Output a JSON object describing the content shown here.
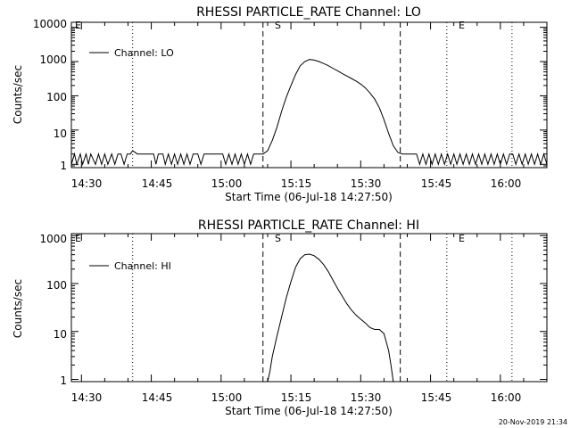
{
  "footer": {
    "timestamp": "20-Nov-2019 21:34"
  },
  "chart_data": [
    {
      "type": "line",
      "title": "RHESSI PARTICLE_RATE Channel: LO",
      "xlabel": "Start Time (06-Jul-18 14:27:50)",
      "ylabel": "Counts/sec",
      "x_tick_labels": [
        "14:30",
        "14:45",
        "15:00",
        "15:15",
        "15:30",
        "15:45",
        "16:00"
      ],
      "y_tick_labels": [
        "1",
        "10",
        "100",
        "1000",
        "10000"
      ],
      "y_scale": "log",
      "xlim": [
        "14:27:50",
        "16:10:00"
      ],
      "ylim": [
        0.8,
        14000
      ],
      "legend": {
        "label": "Channel: LO",
        "position": "top-left"
      },
      "markers": [
        {
          "label": "E",
          "time": "14:27:50",
          "style": "none"
        },
        {
          "label": "",
          "time": "14:41:00",
          "style": "dotted"
        },
        {
          "label": "S",
          "time": "15:09:00",
          "style": "dashed"
        },
        {
          "label": "",
          "time": "15:38:30",
          "style": "dashed"
        },
        {
          "label": "E",
          "time": "15:48:30",
          "style": "dotted"
        },
        {
          "label": "",
          "time": "16:02:30",
          "style": "dotted"
        }
      ],
      "series": [
        {
          "name": "Channel: LO",
          "points": [
            [
              "14:27:50",
              1
            ],
            [
              "14:28:30",
              2
            ],
            [
              "14:29:00",
              1
            ],
            [
              "14:29:45",
              2
            ],
            [
              "14:30:15",
              1
            ],
            [
              "14:31:00",
              2
            ],
            [
              "14:31:30",
              1
            ],
            [
              "14:32:00",
              2
            ],
            [
              "14:33:00",
              1
            ],
            [
              "14:33:40",
              2
            ],
            [
              "14:34:20",
              1
            ],
            [
              "14:35:00",
              2
            ],
            [
              "14:35:40",
              1
            ],
            [
              "14:36:30",
              2
            ],
            [
              "14:37:10",
              1
            ],
            [
              "14:37:50",
              2
            ],
            [
              "14:38:30",
              2
            ],
            [
              "14:39:10",
              1
            ],
            [
              "14:39:50",
              2
            ],
            [
              "14:40:30",
              2
            ],
            [
              "14:41:00",
              2.5
            ],
            [
              "14:42:00",
              2
            ],
            [
              "14:45:30",
              2
            ],
            [
              "14:46:00",
              1
            ],
            [
              "14:46:30",
              2
            ],
            [
              "14:47:30",
              2
            ],
            [
              "14:48:00",
              1
            ],
            [
              "14:48:40",
              2
            ],
            [
              "14:49:20",
              1
            ],
            [
              "14:50:00",
              2
            ],
            [
              "14:50:40",
              1
            ],
            [
              "14:51:20",
              2
            ],
            [
              "14:52:00",
              1
            ],
            [
              "14:52:40",
              2
            ],
            [
              "14:53:20",
              1
            ],
            [
              "14:54:00",
              2
            ],
            [
              "14:55:00",
              2
            ],
            [
              "14:55:40",
              1
            ],
            [
              "14:56:20",
              2
            ],
            [
              "14:57:00",
              2
            ],
            [
              "14:58:00",
              2
            ],
            [
              "15:00:20",
              2
            ],
            [
              "15:01:00",
              1
            ],
            [
              "15:01:40",
              2
            ],
            [
              "15:02:20",
              1
            ],
            [
              "15:03:00",
              2
            ],
            [
              "15:03:40",
              1
            ],
            [
              "15:04:20",
              2
            ],
            [
              "15:05:00",
              1
            ],
            [
              "15:05:40",
              2
            ],
            [
              "15:06:20",
              1
            ],
            [
              "15:07:00",
              2
            ],
            [
              "15:08:00",
              2
            ],
            [
              "15:09:00",
              2
            ],
            [
              "15:10:00",
              2.5
            ],
            [
              "15:11:00",
              5
            ],
            [
              "15:12:00",
              12
            ],
            [
              "15:13:00",
              35
            ],
            [
              "15:14:00",
              90
            ],
            [
              "15:15:00",
              200
            ],
            [
              "15:16:00",
              420
            ],
            [
              "15:17:00",
              750
            ],
            [
              "15:18:00",
              1000
            ],
            [
              "15:19:00",
              1150
            ],
            [
              "15:20:00",
              1100
            ],
            [
              "15:21:00",
              1000
            ],
            [
              "15:22:00",
              880
            ],
            [
              "15:23:00",
              760
            ],
            [
              "15:24:00",
              640
            ],
            [
              "15:25:00",
              540
            ],
            [
              "15:26:00",
              450
            ],
            [
              "15:27:00",
              380
            ],
            [
              "15:28:00",
              320
            ],
            [
              "15:29:00",
              270
            ],
            [
              "15:30:00",
              220
            ],
            [
              "15:31:00",
              170
            ],
            [
              "15:32:00",
              120
            ],
            [
              "15:33:00",
              80
            ],
            [
              "15:34:00",
              45
            ],
            [
              "15:35:00",
              20
            ],
            [
              "15:36:00",
              8
            ],
            [
              "15:37:00",
              3.5
            ],
            [
              "15:38:00",
              2.2
            ],
            [
              "15:39:00",
              2
            ],
            [
              "15:42:00",
              2
            ],
            [
              "15:42:40",
              1
            ],
            [
              "15:43:20",
              2
            ],
            [
              "15:44:00",
              1
            ],
            [
              "15:44:40",
              2
            ],
            [
              "15:45:20",
              1
            ],
            [
              "15:46:00",
              2
            ],
            [
              "15:46:40",
              1
            ],
            [
              "15:47:20",
              2
            ],
            [
              "15:48:00",
              1
            ],
            [
              "15:48:40",
              2
            ],
            [
              "15:49:20",
              1
            ],
            [
              "15:50:00",
              2
            ],
            [
              "15:50:40",
              1
            ],
            [
              "15:51:20",
              2
            ],
            [
              "15:52:00",
              1
            ],
            [
              "15:52:40",
              2
            ],
            [
              "15:53:20",
              1
            ],
            [
              "15:54:00",
              2
            ],
            [
              "15:54:40",
              1
            ],
            [
              "15:55:20",
              2
            ],
            [
              "15:56:00",
              1
            ],
            [
              "15:56:40",
              2
            ],
            [
              "15:57:20",
              1
            ],
            [
              "15:58:00",
              2
            ],
            [
              "15:58:40",
              1
            ],
            [
              "15:59:20",
              2
            ],
            [
              "16:00:00",
              1
            ],
            [
              "16:00:40",
              2
            ],
            [
              "16:01:20",
              1
            ],
            [
              "16:02:00",
              2
            ],
            [
              "16:02:40",
              2
            ],
            [
              "16:03:20",
              1
            ],
            [
              "16:04:00",
              2
            ],
            [
              "16:04:40",
              1
            ],
            [
              "16:05:20",
              2
            ],
            [
              "16:06:00",
              1
            ],
            [
              "16:06:40",
              2
            ],
            [
              "16:07:20",
              1
            ],
            [
              "16:08:00",
              2
            ],
            [
              "16:08:40",
              1
            ],
            [
              "16:09:20",
              2
            ],
            [
              "16:10:00",
              1
            ]
          ]
        }
      ]
    },
    {
      "type": "line",
      "title": "RHESSI PARTICLE_RATE Channel: HI",
      "xlabel": "Start Time (06-Jul-18 14:27:50)",
      "ylabel": "Counts/sec",
      "x_tick_labels": [
        "14:30",
        "14:45",
        "15:00",
        "15:15",
        "15:30",
        "15:45",
        "16:00"
      ],
      "y_tick_labels": [
        "1",
        "10",
        "100",
        "1000"
      ],
      "y_scale": "log",
      "xlim": [
        "14:27:50",
        "16:10:00"
      ],
      "ylim": [
        0.9,
        1100
      ],
      "legend": {
        "label": "Channel: HI",
        "position": "top-left"
      },
      "markers": [
        {
          "label": "E",
          "time": "14:27:50",
          "style": "none"
        },
        {
          "label": "",
          "time": "14:41:00",
          "style": "dotted"
        },
        {
          "label": "S",
          "time": "15:09:00",
          "style": "dashed"
        },
        {
          "label": "",
          "time": "15:38:30",
          "style": "dashed"
        },
        {
          "label": "E",
          "time": "15:48:30",
          "style": "dotted"
        },
        {
          "label": "",
          "time": "16:02:30",
          "style": "dotted"
        }
      ],
      "series": [
        {
          "name": "Channel: HI",
          "points": [
            [
              "15:10:00",
              0.9
            ],
            [
              "15:10:30",
              1.5
            ],
            [
              "15:11:00",
              3
            ],
            [
              "15:12:00",
              8
            ],
            [
              "15:13:00",
              20
            ],
            [
              "15:14:00",
              50
            ],
            [
              "15:15:00",
              110
            ],
            [
              "15:16:00",
              220
            ],
            [
              "15:17:00",
              330
            ],
            [
              "15:18:00",
              400
            ],
            [
              "15:19:00",
              410
            ],
            [
              "15:20:00",
              380
            ],
            [
              "15:21:00",
              320
            ],
            [
              "15:22:00",
              250
            ],
            [
              "15:23:00",
              180
            ],
            [
              "15:24:00",
              120
            ],
            [
              "15:25:00",
              80
            ],
            [
              "15:26:00",
              55
            ],
            [
              "15:27:00",
              38
            ],
            [
              "15:28:00",
              28
            ],
            [
              "15:29:00",
              22
            ],
            [
              "15:30:00",
              18
            ],
            [
              "15:31:00",
              15
            ],
            [
              "15:32:00",
              12
            ],
            [
              "15:33:00",
              11
            ],
            [
              "15:34:00",
              11
            ],
            [
              "15:35:00",
              9
            ],
            [
              "15:36:00",
              4
            ],
            [
              "15:36:30",
              2
            ],
            [
              "15:37:00",
              0.9
            ]
          ]
        }
      ]
    }
  ]
}
